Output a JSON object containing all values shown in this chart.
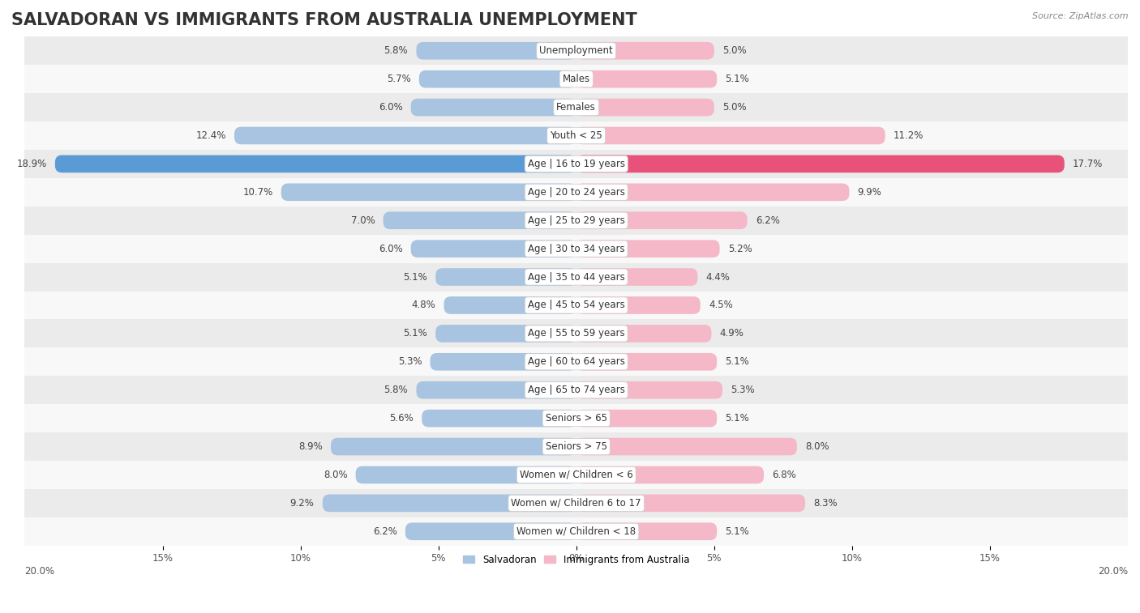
{
  "title": "SALVADORAN VS IMMIGRANTS FROM AUSTRALIA UNEMPLOYMENT",
  "source": "Source: ZipAtlas.com",
  "categories": [
    "Unemployment",
    "Males",
    "Females",
    "Youth < 25",
    "Age | 16 to 19 years",
    "Age | 20 to 24 years",
    "Age | 25 to 29 years",
    "Age | 30 to 34 years",
    "Age | 35 to 44 years",
    "Age | 45 to 54 years",
    "Age | 55 to 59 years",
    "Age | 60 to 64 years",
    "Age | 65 to 74 years",
    "Seniors > 65",
    "Seniors > 75",
    "Women w/ Children < 6",
    "Women w/ Children 6 to 17",
    "Women w/ Children < 18"
  ],
  "salvadoran": [
    5.8,
    5.7,
    6.0,
    12.4,
    18.9,
    10.7,
    7.0,
    6.0,
    5.1,
    4.8,
    5.1,
    5.3,
    5.8,
    5.6,
    8.9,
    8.0,
    9.2,
    6.2
  ],
  "australia": [
    5.0,
    5.1,
    5.0,
    11.2,
    17.7,
    9.9,
    6.2,
    5.2,
    4.4,
    4.5,
    4.9,
    5.1,
    5.3,
    5.1,
    8.0,
    6.8,
    8.3,
    5.1
  ],
  "salvadoran_color": "#a8c4e0",
  "salvadoran_color_highlight": "#5b9bd5",
  "australia_color": "#f4b8c8",
  "australia_color_highlight": "#e8527a",
  "row_color_odd": "#ebebeb",
  "row_color_even": "#f8f8f8",
  "max_val": 20.0,
  "bar_height": 0.62,
  "title_fontsize": 15,
  "label_fontsize": 8.5,
  "value_fontsize": 8.5,
  "tick_fontsize": 8.5,
  "highlight_rows": [
    4
  ]
}
